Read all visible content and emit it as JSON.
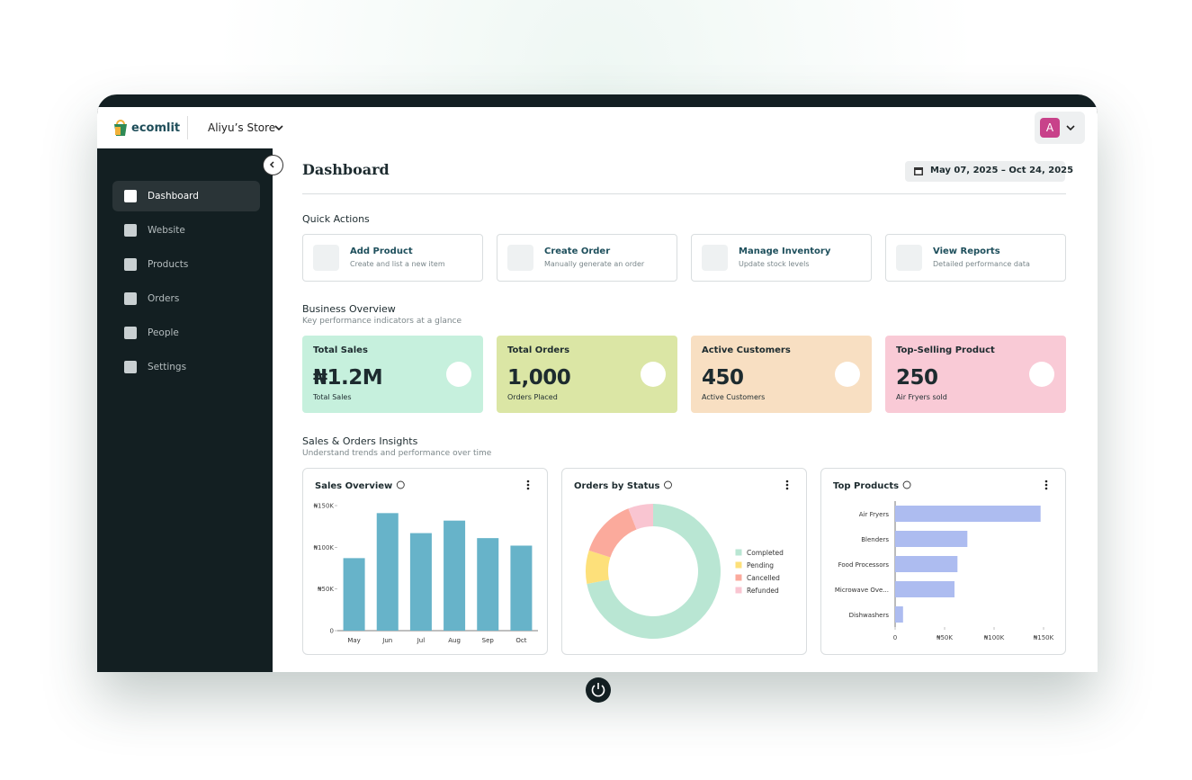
{
  "header": {
    "logo": "ecomlit",
    "store": "Aliyu’s Store",
    "avatar": "A"
  },
  "sidebar": {
    "items": [
      "Dashboard",
      "Website",
      "Products",
      "Orders",
      "People",
      "Settings"
    ]
  },
  "page": {
    "title": "Dashboard",
    "date_range": "May 07, 2025 – Oct 24, 2025"
  },
  "quick_actions": {
    "title": "Quick Actions",
    "items": [
      {
        "label": "Add Product",
        "desc": "Create and list a new item"
      },
      {
        "label": "Create Order",
        "desc": "Manually generate an order"
      },
      {
        "label": "Manage Inventory",
        "desc": "Update stock levels"
      },
      {
        "label": "View Reports",
        "desc": "Detailed performance data"
      }
    ]
  },
  "overview": {
    "title": "Business Overview",
    "subtitle": "Key performance indicators at a glance",
    "cards": [
      {
        "title": "Total Sales",
        "value": "₦1.2M",
        "caption": "Total Sales",
        "color": "#c6f0dd"
      },
      {
        "title": "Total Orders",
        "value": "1,000",
        "caption": "Orders Placed",
        "color": "#dbe6a5"
      },
      {
        "title": "Active Customers",
        "value": 450,
        "caption": "Active Customers",
        "color": "#f8dfc2"
      },
      {
        "title": "Top-Selling Product",
        "value": 250,
        "caption": "Air Fryers sold",
        "color": "#f9cad6"
      }
    ]
  },
  "insights": {
    "title": "Sales & Orders Insights",
    "subtitle": "Understand trends and performance over time"
  },
  "chart_data": [
    {
      "type": "bar",
      "title": "Sales Overview",
      "categories": [
        "May",
        "Jun",
        "Jul",
        "Aug",
        "Sep",
        "Oct"
      ],
      "values": [
        87000,
        141000,
        117000,
        132000,
        111000,
        102000
      ],
      "color": "#67b3c9",
      "ylim": [
        0,
        150000
      ],
      "yticks": [
        0,
        {
          "value": 50000,
          "label": "₦50K"
        },
        {
          "value": 100000,
          "label": "₦100K"
        },
        {
          "value": 150000,
          "label": "₦150K"
        }
      ]
    },
    {
      "type": "donut",
      "title": "Orders by Status",
      "categories": [
        "Completed",
        "Pending",
        "Cancelled",
        "Refunded"
      ],
      "values": [
        72,
        8,
        14,
        6
      ],
      "colors": [
        "#b9e6d3",
        "#fde07a",
        "#fbaa9c",
        "#f9c5d1"
      ]
    },
    {
      "type": "bar",
      "orientation": "horizontal",
      "title": "Top Products",
      "categories": [
        "Air Fryers",
        "Blenders",
        "Food Processors",
        "Microwave Ove...",
        "Dishwashers"
      ],
      "values": [
        147000,
        73000,
        63000,
        60000,
        8000
      ],
      "color": "#adbcf0",
      "xlim": [
        0,
        150000
      ],
      "xticks": [
        0,
        {
          "value": 50000,
          "label": "₦50K"
        },
        {
          "value": 100000,
          "label": "₦100K"
        },
        {
          "value": 150000,
          "label": "₦150K"
        }
      ]
    }
  ]
}
